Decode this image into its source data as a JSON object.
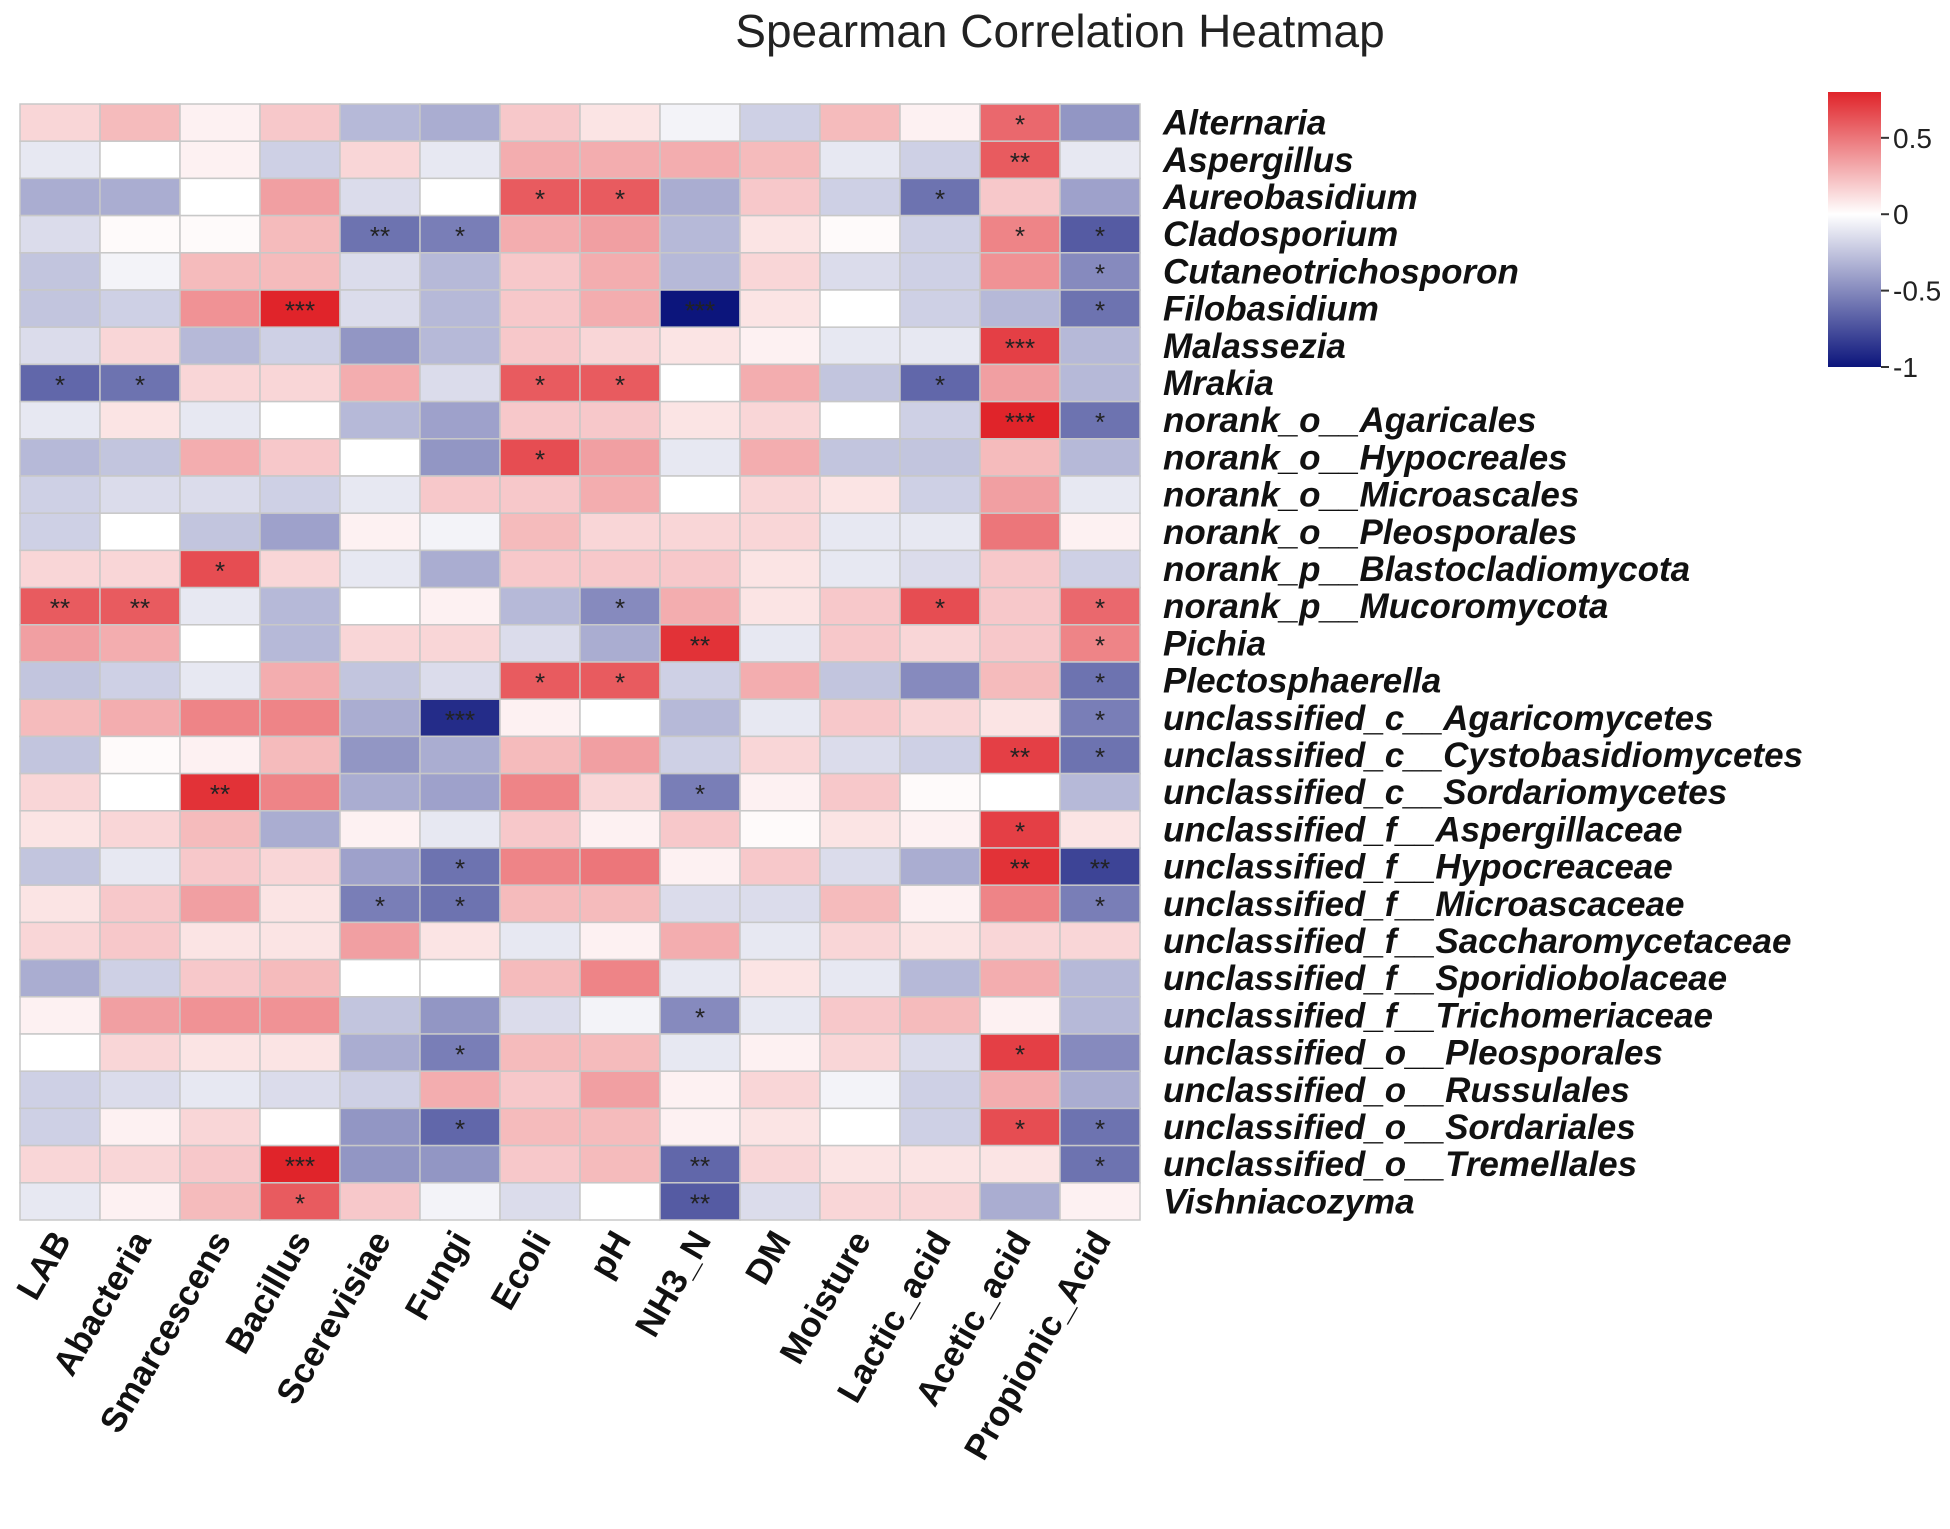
{
  "chart_data": {
    "type": "heatmap",
    "title": "Spearman Correlation Heatmap",
    "columns": [
      "LAB",
      "Abacteria",
      "Smarcescens",
      "Bacillus",
      "Scerevisiae",
      "Fungi",
      "Ecoli",
      "pH",
      "NH3_N",
      "DM",
      "Moisture",
      "Lactic_acid",
      "Acetic_acid",
      "Propionic_Acid"
    ],
    "rows": [
      "Alternaria",
      "Aspergillus",
      "Aureobasidium",
      "Cladosporium",
      "Cutaneotrichosporon",
      "Filobasidium",
      "Malassezia",
      "Mrakia",
      "norank_o__Agaricales",
      "norank_o__Hypocreales",
      "norank_o__Microascales",
      "norank_o__Pleosporales",
      "norank_p__Blastocladiomycota",
      "norank_p__Mucoromycota",
      "Pichia",
      "Plectosphaerella",
      "unclassified_c__Agaricomycetes",
      "unclassified_c__Cystobasidiomycetes",
      "unclassified_c__Sordariomycetes",
      "unclassified_f__Aspergillaceae",
      "unclassified_f__Hypocreaceae",
      "unclassified_f__Microascaceae",
      "unclassified_f__Saccharomycetaceae",
      "unclassified_f__Sporidiobolaceae",
      "unclassified_f__Trichomeriaceae",
      "unclassified_o__Pleosporales",
      "unclassified_o__Russulales",
      "unclassified_o__Sordariales",
      "unclassified_o__Tremellales",
      "Vishniacozyma"
    ],
    "values": [
      [
        0.15,
        0.25,
        0.05,
        0.2,
        -0.3,
        -0.35,
        0.2,
        0.1,
        -0.05,
        -0.2,
        0.25,
        0.05,
        0.55,
        -0.45
      ],
      [
        -0.1,
        0.0,
        0.05,
        -0.2,
        0.15,
        -0.1,
        0.3,
        0.3,
        0.3,
        0.25,
        -0.1,
        -0.2,
        0.6,
        -0.1
      ],
      [
        -0.35,
        -0.35,
        0.0,
        0.35,
        -0.15,
        0.0,
        0.6,
        0.6,
        -0.35,
        0.2,
        -0.2,
        -0.6,
        0.2,
        -0.4
      ],
      [
        -0.15,
        0.02,
        0.02,
        0.25,
        -0.6,
        -0.55,
        0.3,
        0.35,
        -0.3,
        0.1,
        0.02,
        -0.2,
        0.45,
        -0.7
      ],
      [
        -0.25,
        -0.05,
        0.25,
        0.25,
        -0.15,
        -0.3,
        0.2,
        0.3,
        -0.3,
        0.15,
        -0.15,
        -0.2,
        0.4,
        -0.5
      ],
      [
        -0.25,
        -0.2,
        0.4,
        0.85,
        -0.15,
        -0.3,
        0.2,
        0.3,
        -1.0,
        0.1,
        0.0,
        -0.2,
        -0.3,
        -0.6
      ],
      [
        -0.15,
        0.15,
        -0.3,
        -0.2,
        -0.45,
        -0.3,
        0.2,
        0.15,
        0.1,
        0.05,
        -0.1,
        -0.1,
        0.7,
        -0.3
      ],
      [
        -0.65,
        -0.6,
        0.15,
        0.15,
        0.3,
        -0.15,
        0.6,
        0.6,
        0.0,
        0.3,
        -0.25,
        -0.65,
        0.35,
        -0.3
      ],
      [
        -0.1,
        0.1,
        -0.1,
        0.0,
        -0.3,
        -0.4,
        0.2,
        0.2,
        0.1,
        0.15,
        0.0,
        -0.2,
        0.8,
        -0.6
      ],
      [
        -0.3,
        -0.25,
        0.3,
        0.2,
        0.0,
        -0.45,
        0.65,
        0.35,
        -0.1,
        0.3,
        -0.25,
        -0.25,
        0.25,
        -0.3
      ],
      [
        -0.2,
        -0.15,
        -0.15,
        -0.2,
        -0.1,
        0.2,
        0.2,
        0.3,
        0.0,
        0.15,
        0.1,
        -0.2,
        0.35,
        -0.1
      ],
      [
        -0.2,
        0.0,
        -0.25,
        -0.4,
        0.05,
        -0.05,
        0.25,
        0.15,
        0.15,
        0.15,
        -0.1,
        -0.1,
        0.5,
        0.05
      ],
      [
        0.15,
        0.15,
        0.65,
        0.15,
        -0.1,
        -0.35,
        0.2,
        0.2,
        0.2,
        0.1,
        -0.1,
        -0.15,
        0.2,
        -0.2
      ],
      [
        0.6,
        0.6,
        -0.1,
        -0.3,
        0.0,
        0.05,
        -0.3,
        -0.5,
        0.3,
        0.1,
        0.2,
        0.65,
        0.2,
        0.55
      ],
      [
        0.35,
        0.3,
        0.0,
        -0.3,
        0.15,
        0.15,
        -0.15,
        -0.35,
        0.75,
        -0.1,
        0.2,
        0.15,
        0.2,
        0.45
      ],
      [
        -0.25,
        -0.2,
        -0.1,
        0.3,
        -0.25,
        -0.15,
        0.6,
        0.6,
        -0.2,
        0.3,
        -0.25,
        -0.5,
        0.25,
        -0.6
      ],
      [
        0.25,
        0.3,
        0.45,
        0.45,
        -0.35,
        -0.9,
        0.05,
        0.0,
        -0.3,
        -0.1,
        0.2,
        0.15,
        0.1,
        -0.55
      ],
      [
        -0.25,
        0.02,
        0.05,
        0.25,
        -0.45,
        -0.35,
        0.25,
        0.35,
        -0.2,
        0.15,
        -0.15,
        -0.2,
        0.7,
        -0.6
      ],
      [
        0.15,
        0.0,
        0.75,
        0.45,
        -0.35,
        -0.4,
        0.45,
        0.15,
        -0.55,
        0.05,
        0.2,
        0.02,
        0.0,
        -0.3
      ],
      [
        0.1,
        0.15,
        0.25,
        -0.35,
        0.05,
        -0.1,
        0.2,
        0.05,
        0.2,
        0.02,
        0.1,
        0.05,
        0.7,
        0.1
      ],
      [
        -0.25,
        -0.1,
        0.2,
        0.15,
        -0.4,
        -0.6,
        0.45,
        0.5,
        0.05,
        0.2,
        -0.15,
        -0.35,
        0.75,
        -0.8
      ],
      [
        0.1,
        0.2,
        0.35,
        0.1,
        -0.55,
        -0.6,
        0.25,
        0.25,
        -0.15,
        -0.15,
        0.25,
        0.05,
        0.45,
        -0.55
      ],
      [
        0.15,
        0.2,
        0.1,
        0.1,
        0.35,
        0.1,
        -0.1,
        0.05,
        0.3,
        -0.1,
        0.15,
        0.1,
        0.15,
        0.15
      ],
      [
        -0.35,
        -0.2,
        0.2,
        0.25,
        0.0,
        0.0,
        0.25,
        0.45,
        -0.1,
        0.1,
        -0.1,
        -0.3,
        0.3,
        -0.3
      ],
      [
        0.05,
        0.35,
        0.4,
        0.4,
        -0.25,
        -0.45,
        -0.15,
        -0.05,
        -0.5,
        -0.1,
        0.2,
        0.25,
        0.05,
        -0.3
      ],
      [
        0.0,
        0.15,
        0.1,
        0.1,
        -0.35,
        -0.55,
        0.25,
        0.25,
        -0.1,
        0.05,
        0.15,
        -0.15,
        0.7,
        -0.5
      ],
      [
        -0.2,
        -0.15,
        -0.1,
        -0.15,
        -0.2,
        0.3,
        0.2,
        0.35,
        0.05,
        0.15,
        -0.05,
        -0.2,
        0.3,
        -0.35
      ],
      [
        -0.2,
        0.05,
        0.15,
        0.0,
        -0.45,
        -0.65,
        0.25,
        0.25,
        0.05,
        0.1,
        0.0,
        -0.2,
        0.65,
        -0.6
      ],
      [
        0.15,
        0.15,
        0.2,
        0.85,
        -0.45,
        -0.45,
        0.2,
        0.25,
        -0.65,
        0.15,
        0.1,
        0.1,
        0.1,
        -0.6
      ],
      [
        -0.1,
        0.05,
        0.25,
        0.6,
        0.2,
        -0.05,
        -0.15,
        0.0,
        -0.7,
        -0.15,
        0.15,
        0.15,
        -0.35,
        0.05
      ]
    ],
    "significance": [
      [
        "",
        "",
        "",
        "",
        "",
        "",
        "",
        "",
        "",
        "",
        "",
        "",
        "*",
        ""
      ],
      [
        "",
        "",
        "",
        "",
        "",
        "",
        "",
        "",
        "",
        "",
        "",
        "",
        "**",
        ""
      ],
      [
        "",
        "",
        "",
        "",
        "",
        "",
        "*",
        "*",
        "",
        "",
        "",
        "*",
        "",
        ""
      ],
      [
        "",
        "",
        "",
        "",
        "**",
        "*",
        "",
        "",
        "",
        "",
        "",
        "",
        "*",
        "*"
      ],
      [
        "",
        "",
        "",
        "",
        "",
        "",
        "",
        "",
        "",
        "",
        "",
        "",
        "",
        "*"
      ],
      [
        "",
        "",
        "",
        "***",
        "",
        "",
        "",
        "",
        "***",
        "",
        "",
        "",
        "",
        "*"
      ],
      [
        "",
        "",
        "",
        "",
        "",
        "",
        "",
        "",
        "",
        "",
        "",
        "",
        "***",
        ""
      ],
      [
        "*",
        "*",
        "",
        "",
        "",
        "",
        "*",
        "*",
        "",
        "",
        "",
        "*",
        "",
        ""
      ],
      [
        "",
        "",
        "",
        "",
        "",
        "",
        "",
        "",
        "",
        "",
        "",
        "",
        "***",
        "*"
      ],
      [
        "",
        "",
        "",
        "",
        "",
        "",
        "*",
        "",
        "",
        "",
        "",
        "",
        "",
        ""
      ],
      [
        "",
        "",
        "",
        "",
        "",
        "",
        "",
        "",
        "",
        "",
        "",
        "",
        "",
        ""
      ],
      [
        "",
        "",
        "",
        "",
        "",
        "",
        "",
        "",
        "",
        "",
        "",
        "",
        "",
        ""
      ],
      [
        "",
        "",
        "*",
        "",
        "",
        "",
        "",
        "",
        "",
        "",
        "",
        "",
        "",
        ""
      ],
      [
        "**",
        "**",
        "",
        "",
        "",
        "",
        "",
        "*",
        "",
        "",
        "",
        "*",
        "",
        "*"
      ],
      [
        "",
        "",
        "",
        "",
        "",
        "",
        "",
        "",
        "**",
        "",
        "",
        "",
        "",
        "*"
      ],
      [
        "",
        "",
        "",
        "",
        "",
        "",
        "*",
        "*",
        "",
        "",
        "",
        "",
        "",
        "*"
      ],
      [
        "",
        "",
        "",
        "",
        "",
        "***",
        "",
        "",
        "",
        "",
        "",
        "",
        "",
        "*"
      ],
      [
        "",
        "",
        "",
        "",
        "",
        "",
        "",
        "",
        "",
        "",
        "",
        "",
        "**",
        "*"
      ],
      [
        "",
        "",
        "**",
        "",
        "",
        "",
        "",
        "",
        "*",
        "",
        "",
        "",
        "",
        ""
      ],
      [
        "",
        "",
        "",
        "",
        "",
        "",
        "",
        "",
        "",
        "",
        "",
        "",
        "*",
        ""
      ],
      [
        "",
        "",
        "",
        "",
        "",
        "*",
        "",
        "",
        "",
        "",
        "",
        "",
        "**",
        "**"
      ],
      [
        "",
        "",
        "",
        "",
        "*",
        "*",
        "",
        "",
        "",
        "",
        "",
        "",
        "",
        "*"
      ],
      [
        "",
        "",
        "",
        "",
        "",
        "",
        "",
        "",
        "",
        "",
        "",
        "",
        "",
        ""
      ],
      [
        "",
        "",
        "",
        "",
        "",
        "",
        "",
        "",
        "",
        "",
        "",
        "",
        "",
        ""
      ],
      [
        "",
        "",
        "",
        "",
        "",
        "",
        "",
        "",
        "*",
        "",
        "",
        "",
        "",
        ""
      ],
      [
        "",
        "",
        "",
        "",
        "",
        "*",
        "",
        "",
        "",
        "",
        "",
        "",
        "*",
        ""
      ],
      [
        "",
        "",
        "",
        "",
        "",
        "",
        "",
        "",
        "",
        "",
        "",
        "",
        "",
        ""
      ],
      [
        "",
        "",
        "",
        "",
        "",
        "*",
        "",
        "",
        "",
        "",
        "",
        "",
        "*",
        "*"
      ],
      [
        "",
        "",
        "",
        "***",
        "",
        "",
        "",
        "",
        "**",
        "",
        "",
        "",
        "",
        "*"
      ],
      [
        "",
        "",
        "",
        "*",
        "",
        "",
        "",
        "",
        "**",
        "",
        "",
        "",
        "",
        ""
      ]
    ],
    "colorscale": {
      "min": -1,
      "mid": 0,
      "max": 0.8,
      "low_color": "#0c157c",
      "mid_color": "#ffffff",
      "high_color": "#e0242a"
    },
    "legend_ticks": [
      "0.5",
      "0",
      "-0.5",
      "-1"
    ],
    "legend_tick_values": [
      0.5,
      0,
      -0.5,
      -1
    ]
  }
}
